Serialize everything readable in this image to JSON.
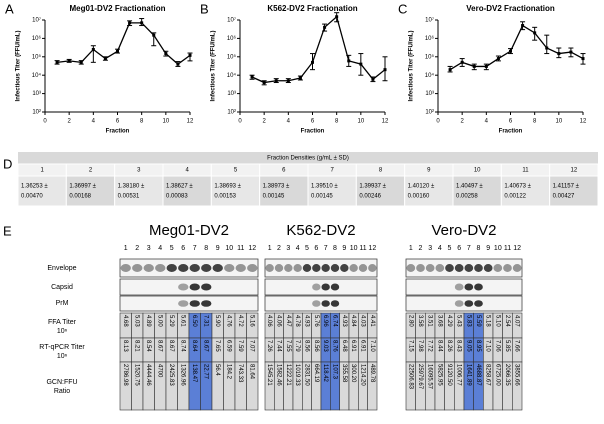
{
  "chart_data": [
    {
      "type": "line",
      "panel": "A",
      "title": "Meg01-DV2 Fractionation",
      "ylabel": "Infectious Titer (FFU/mL)",
      "xlabel": "Fraction",
      "color": "#000000",
      "log": true,
      "x": [
        1,
        2,
        3,
        4,
        5,
        6,
        7,
        8,
        9,
        10,
        11,
        12
      ],
      "values": [
        50000,
        60000,
        50000,
        250000,
        80000,
        200000,
        7000000,
        7000000,
        1500000,
        150000,
        40000,
        120000
      ],
      "err_low": [
        40000,
        50000,
        40000,
        50000,
        65000,
        160000,
        5000000,
        5000000,
        400000,
        110000,
        30000,
        60000
      ],
      "err_high": [
        62000,
        72000,
        62000,
        400000,
        100000,
        260000,
        9000000,
        12000000,
        2000000,
        200000,
        55000,
        160000
      ],
      "xlim": [
        0,
        12
      ],
      "xticks": [
        0,
        2,
        4,
        6,
        8,
        10,
        12
      ],
      "ylim": [
        100,
        10000000
      ],
      "yticks": [
        {
          "value": 100,
          "label": "10²"
        },
        {
          "value": 1000,
          "label": "10³"
        },
        {
          "value": 10000,
          "label": "10⁴"
        },
        {
          "value": 100000,
          "label": "10⁵"
        },
        {
          "value": 1000000,
          "label": "10⁶"
        },
        {
          "value": 10000000,
          "label": "10⁷"
        }
      ]
    },
    {
      "type": "line",
      "panel": "B",
      "title": "K562-DV2 Fractionation",
      "ylabel": "Infectious Titer (FFU/mL)",
      "xlabel": "Fraction",
      "color": "#000000",
      "log": true,
      "x": [
        1,
        2,
        3,
        4,
        5,
        6,
        7,
        8,
        9,
        10,
        11,
        12
      ],
      "values": [
        8000,
        4000,
        5000,
        5000,
        7000,
        50000,
        4000000,
        15000000,
        60000,
        40000,
        6000,
        20000
      ],
      "err_low": [
        6000,
        3000,
        4000,
        4000,
        5500,
        20000,
        2500000,
        8000000,
        30000,
        10000,
        4500,
        5000
      ],
      "err_high": [
        10000,
        5000,
        6500,
        6500,
        9000,
        150000,
        6000000,
        25000000,
        120000,
        150000,
        8000,
        100000
      ],
      "xlim": [
        0,
        12
      ],
      "xticks": [
        0,
        2,
        4,
        6,
        8,
        10,
        12
      ],
      "ylim": [
        100,
        10000000
      ],
      "yticks": [
        {
          "value": 100,
          "label": "10²"
        },
        {
          "value": 1000,
          "label": "10³"
        },
        {
          "value": 10000,
          "label": "10⁴"
        },
        {
          "value": 100000,
          "label": "10⁵"
        },
        {
          "value": 1000000,
          "label": "10⁶"
        },
        {
          "value": 10000000,
          "label": "10⁷"
        }
      ]
    },
    {
      "type": "line",
      "panel": "C",
      "title": "Vero-DV2 Fractionation",
      "ylabel": "Infectious Titer (FFU/mL)",
      "xlabel": "Fraction",
      "color": "#000000",
      "log": true,
      "x": [
        1,
        2,
        3,
        4,
        5,
        6,
        7,
        8,
        9,
        10,
        11,
        12
      ],
      "values": [
        20000,
        50000,
        30000,
        30000,
        80000,
        200000,
        5000000,
        2000000,
        300000,
        150000,
        180000,
        80000
      ],
      "err_low": [
        15000,
        30000,
        20000,
        20000,
        60000,
        150000,
        3000000,
        800000,
        150000,
        90000,
        100000,
        40000
      ],
      "err_high": [
        30000,
        80000,
        40000,
        40000,
        110000,
        280000,
        8000000,
        4000000,
        1500000,
        300000,
        300000,
        150000
      ],
      "xlim": [
        0,
        12
      ],
      "xticks": [
        0,
        2,
        4,
        6,
        8,
        10,
        12
      ],
      "ylim": [
        100,
        10000000
      ],
      "yticks": [
        {
          "value": 100,
          "label": "10²"
        },
        {
          "value": 1000,
          "label": "10³"
        },
        {
          "value": 10000,
          "label": "10⁴"
        },
        {
          "value": 100000,
          "label": "10⁵"
        },
        {
          "value": 1000000,
          "label": "10⁶"
        },
        {
          "value": 10000000,
          "label": "10⁷"
        }
      ]
    }
  ],
  "table_d": {
    "panel": "D",
    "title": "Fraction Densities (g/mL ± SD)",
    "columns": [
      "1",
      "2",
      "3",
      "4",
      "5",
      "6",
      "7",
      "8",
      "9",
      "10",
      "11",
      "12"
    ],
    "line1": [
      "1.36253 ±",
      "1.36997 ±",
      "1.38180 ±",
      "1.38627 ±",
      "1.38693 ±",
      "1.38973 ±",
      "1.39510 ±",
      "1.39937 ±",
      "1.40120 ±",
      "1.40497 ±",
      "1.40673 ±",
      "1.41157 ±"
    ],
    "line2": [
      "0.00470",
      "0.00168",
      "0.00531",
      "0.00083",
      "0.00153",
      "0.00145",
      "0.00145",
      "0.00246",
      "0.00160",
      "0.00258",
      "0.00122",
      "0.00427"
    ]
  },
  "panel_e": {
    "panel": "E",
    "lanes": [
      "1",
      "2",
      "3",
      "4",
      "5",
      "6",
      "7",
      "8",
      "9",
      "10",
      "11",
      "12"
    ],
    "row_labels": [
      "Envelope",
      "Capsid",
      "PrM"
    ],
    "ffa_label": [
      "FFA Titer",
      "10ⁿ"
    ],
    "rt_label": [
      "RT-qPCR Titer",
      "10ⁿ"
    ],
    "gcn_label": [
      "GCN:FFU",
      "Ratio"
    ],
    "blocks": [
      {
        "name": "Meg01-DV2",
        "cell_colors": [
          "#d9d9d9",
          "#d9d9d9",
          "#d9d9d9",
          "#d9d9d9",
          "#d9d9d9",
          "#d9d9d9",
          "#5b7fd6",
          "#5b7fd6",
          "#d9d9d9",
          "#d9d9d9",
          "#d9d9d9",
          "#d9d9d9"
        ],
        "ffa": [
          "4.68",
          "5.03",
          "4.89",
          "5.00",
          "5.29",
          "5.61",
          "6.50",
          "7.31",
          "5.90",
          "4.76",
          "4.72",
          "5.16"
        ],
        "rt": [
          "8.13",
          "8.21",
          "8.54",
          "8.67",
          "8.67",
          "8.74",
          "8.64",
          "8.67",
          "7.65",
          "6.59",
          "7.59",
          "7.07"
        ],
        "gcn": [
          "2786.98",
          "1520.75",
          "4444.46",
          "4700",
          "2425.83",
          "1326.96",
          "138.47",
          "22.77",
          "56.4",
          "184.2",
          "743.33",
          "81.64"
        ]
      },
      {
        "name": "K562-DV2",
        "cell_colors": [
          "#d9d9d9",
          "#d9d9d9",
          "#d9d9d9",
          "#d9d9d9",
          "#d9d9d9",
          "#d9d9d9",
          "#5b7fd6",
          "#5b7fd6",
          "#d9d9d9",
          "#d9d9d9",
          "#d9d9d9",
          "#d9d9d9"
        ],
        "ffa": [
          "4.06",
          "4.06",
          "4.47",
          "4.78",
          "4.93",
          "5.76",
          "6.96",
          "6.74",
          "4.93",
          "4.84",
          "4.03",
          "4.41"
        ],
        "rt": [
          "7.26",
          "7.44",
          "7.55",
          "7.79",
          "8.56",
          "8.56",
          "9.03",
          "8.76",
          "6.48",
          "6.91",
          "6.91",
          "7.10"
        ],
        "gcn": [
          "1545.21",
          "1582.46",
          "1222.21",
          "1019.33",
          "2831.50",
          "664.19",
          "118.42",
          "107.3",
          "355.58",
          "300.20",
          "1214.20",
          "489.78"
        ]
      },
      {
        "name": "Vero-DV2",
        "cell_colors": [
          "#d9d9d9",
          "#d9d9d9",
          "#d9d9d9",
          "#d9d9d9",
          "#d9d9d9",
          "#d9d9d9",
          "#5b7fd6",
          "#5b7fd6",
          "#d9d9d9",
          "#d9d9d9",
          "#d9d9d9",
          "#d9d9d9"
        ],
        "ffa": [
          "2.80",
          "3.58",
          "3.51",
          "3.68",
          "4.29",
          "5.43",
          "5.83",
          "5.59",
          "5.18",
          "5.10",
          "2.54",
          "4.07"
        ],
        "rt": [
          "7.15",
          "7.98",
          "7.72",
          "8.44",
          "8.26",
          "8.43",
          "9.05",
          "8.95",
          "7.10",
          "7.06",
          "5.85",
          "7.66"
        ],
        "gcn": [
          "22506.83",
          "25979.67",
          "16095.57",
          "5825.95",
          "9120.50",
          "1006.77",
          "1641.89",
          "4688.87",
          "8258.67",
          "6725.00",
          "2066.35",
          "3855.66"
        ]
      }
    ]
  }
}
